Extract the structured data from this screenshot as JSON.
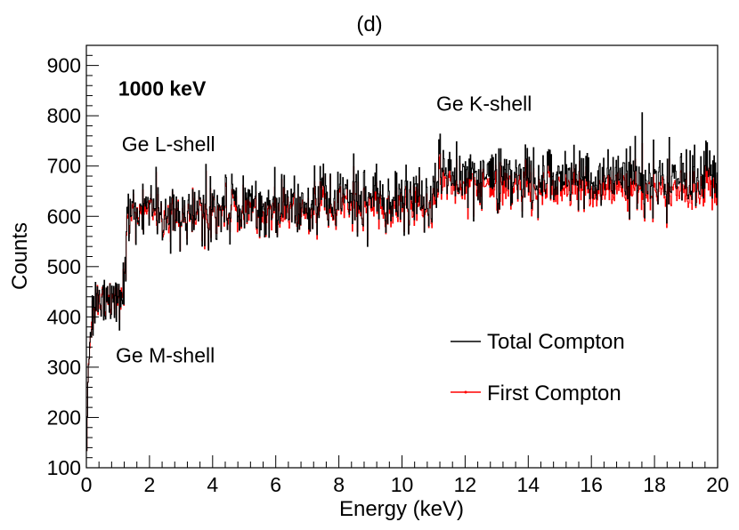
{
  "chart_data": {
    "type": "line",
    "title": "(d)",
    "xlabel": "Energy (keV)",
    "ylabel": "Counts",
    "xlim": [
      0,
      20
    ],
    "ylim": [
      100,
      940
    ],
    "xticks": [
      0,
      2,
      4,
      6,
      8,
      10,
      12,
      14,
      16,
      18,
      20
    ],
    "yticks": [
      100,
      200,
      300,
      400,
      500,
      600,
      700,
      800,
      900
    ],
    "grid": false,
    "legend_position": "lower-right",
    "annotations": [
      {
        "id": "energy",
        "text": "1000 keV",
        "x": 2.4,
        "y": 840,
        "bold": true
      },
      {
        "id": "k-shell",
        "text": "Ge K-shell",
        "x": 12.6,
        "y": 810,
        "bold": false
      },
      {
        "id": "l-shell",
        "text": "Ge L-shell",
        "x": 2.6,
        "y": 730,
        "bold": false
      },
      {
        "id": "m-shell",
        "text": "Ge M-shell",
        "x": 2.5,
        "y": 310,
        "bold": false
      }
    ],
    "series": [
      {
        "name": "Total Compton",
        "color": "#000000",
        "bin_width_keV": 0.02,
        "profile": [
          {
            "x": 0.0,
            "y": 100
          },
          {
            "x": 0.05,
            "y": 270
          },
          {
            "x": 0.1,
            "y": 340
          },
          {
            "x": 0.2,
            "y": 400
          },
          {
            "x": 0.3,
            "y": 420
          },
          {
            "x": 0.6,
            "y": 428
          },
          {
            "x": 1.0,
            "y": 440
          },
          {
            "x": 1.2,
            "y": 448
          },
          {
            "x": 1.3,
            "y": 590
          },
          {
            "x": 1.5,
            "y": 605
          },
          {
            "x": 2.0,
            "y": 607
          },
          {
            "x": 4.0,
            "y": 612
          },
          {
            "x": 6.0,
            "y": 620
          },
          {
            "x": 8.0,
            "y": 628
          },
          {
            "x": 10.0,
            "y": 633
          },
          {
            "x": 11.0,
            "y": 638
          },
          {
            "x": 11.1,
            "y": 680
          },
          {
            "x": 14.0,
            "y": 674
          },
          {
            "x": 17.0,
            "y": 675
          },
          {
            "x": 20.0,
            "y": 672
          }
        ]
      },
      {
        "name": "First Compton",
        "color": "#ff0000",
        "bin_width_keV": 0.02,
        "profile": [
          {
            "x": 0.0,
            "y": 100
          },
          {
            "x": 0.05,
            "y": 270
          },
          {
            "x": 0.1,
            "y": 340
          },
          {
            "x": 0.2,
            "y": 400
          },
          {
            "x": 0.3,
            "y": 420
          },
          {
            "x": 0.6,
            "y": 428
          },
          {
            "x": 1.0,
            "y": 440
          },
          {
            "x": 1.2,
            "y": 448
          },
          {
            "x": 1.3,
            "y": 588
          },
          {
            "x": 1.5,
            "y": 602
          },
          {
            "x": 2.0,
            "y": 603
          },
          {
            "x": 4.0,
            "y": 605
          },
          {
            "x": 6.0,
            "y": 608
          },
          {
            "x": 8.0,
            "y": 613
          },
          {
            "x": 10.0,
            "y": 616
          },
          {
            "x": 11.0,
            "y": 620
          },
          {
            "x": 11.1,
            "y": 662
          },
          {
            "x": 14.0,
            "y": 655
          },
          {
            "x": 17.0,
            "y": 652
          },
          {
            "x": 20.0,
            "y": 647
          }
        ]
      }
    ]
  }
}
